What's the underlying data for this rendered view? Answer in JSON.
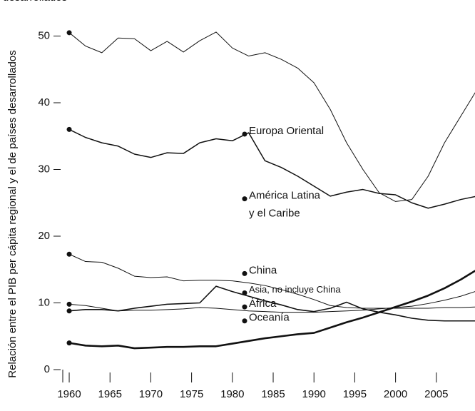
{
  "chart_data": {
    "type": "line",
    "title": "desarrollados",
    "y_label": "Relación entre el PIB per cápita regional y el de países desarrollados",
    "x": [
      1960,
      1962,
      1964,
      1966,
      1968,
      1970,
      1972,
      1974,
      1976,
      1978,
      1980,
      1982,
      1984,
      1986,
      1988,
      1990,
      1992,
      1994,
      1996,
      1998,
      2000,
      2002,
      2004,
      2006,
      2008,
      2010
    ],
    "series": [
      {
        "color": "#111111",
        "width": 1,
        "values": [
          50.5,
          48.5,
          47.5,
          49.7,
          49.6,
          47.8,
          49.2,
          47.6,
          49.3,
          50.6,
          48.2,
          47,
          47.5,
          46.5,
          45.2,
          43,
          39,
          34,
          30,
          26.5,
          25.2,
          25.5,
          29,
          34,
          38,
          42
        ]
      },
      {
        "color": "#111111",
        "width": 1.5,
        "values": [
          36,
          34.8,
          34,
          33.5,
          32.3,
          31.8,
          32.5,
          32.4,
          34,
          34.6,
          34.3,
          35.5,
          31.3,
          30.3,
          29,
          27.5,
          26,
          26.6,
          27,
          26.4,
          26.2,
          25,
          24.2,
          24.8,
          25.5,
          26
        ]
      },
      {
        "color": "#111111",
        "width": 1,
        "values": [
          17.3,
          16.2,
          16.1,
          15.2,
          14,
          13.8,
          13.9,
          13.3,
          13.4,
          13.4,
          13.3,
          13,
          12.6,
          12,
          11.3,
          10.5,
          9.6,
          9.3,
          9.2,
          9.2,
          9.2,
          9.2,
          9.2,
          9.3,
          9.3,
          9.4
        ]
      },
      {
        "color": "#111111",
        "width": 1,
        "values": [
          9.8,
          9.6,
          9.2,
          8.8,
          8.9,
          8.9,
          9,
          9.1,
          9.3,
          9.2,
          9,
          8.8,
          8.7,
          8.6,
          8.6,
          8.6,
          8.7,
          8.8,
          8.9,
          9.1,
          9.3,
          9.5,
          9.9,
          10.4,
          11,
          11.8
        ]
      },
      {
        "color": "#111111",
        "width": 1.6,
        "values": [
          8.8,
          9,
          9,
          8.8,
          9.2,
          9.5,
          9.8,
          9.9,
          10,
          12.5,
          11.7,
          11,
          10.3,
          9.7,
          9,
          8.7,
          9.2,
          10.1,
          9.1,
          8.6,
          8.2,
          7.7,
          7.4,
          7.3,
          7.3,
          7.3
        ]
      },
      {
        "color": "#111111",
        "width": 2.6,
        "values": [
          4,
          3.6,
          3.5,
          3.6,
          3.2,
          3.3,
          3.4,
          3.4,
          3.5,
          3.5,
          3.9,
          4.3,
          4.7,
          5,
          5.3,
          5.5,
          6.3,
          7.1,
          7.8,
          8.6,
          9.4,
          10.2,
          11.1,
          12.2,
          13.5,
          15
        ]
      }
    ],
    "annotations": [
      {
        "text": [
          "Europa Oriental"
        ],
        "x": 1981.5,
        "y": 35.3
      },
      {
        "text": [
          "América Latina",
          "y el Caribe"
        ],
        "x": 1981.5,
        "y": 25.6
      },
      {
        "text": [
          "China"
        ],
        "x": 1981.5,
        "y": 14.4
      },
      {
        "text": [
          "Asia, no incluye China"
        ],
        "x": 1981.5,
        "y": 11.5
      },
      {
        "text": [
          "África"
        ],
        "x": 1981.5,
        "y": 9.4
      },
      {
        "text": [
          "Oceanía"
        ],
        "x": 1981.5,
        "y": 7.3
      }
    ],
    "xlim": [
      1959,
      2010
    ],
    "ylim": [
      0,
      50
    ],
    "xticks": [
      1960,
      1965,
      1970,
      1975,
      1980,
      1985,
      1990,
      1995,
      2000,
      2005
    ],
    "yticks": [
      0,
      10,
      20,
      30,
      40,
      50
    ]
  }
}
